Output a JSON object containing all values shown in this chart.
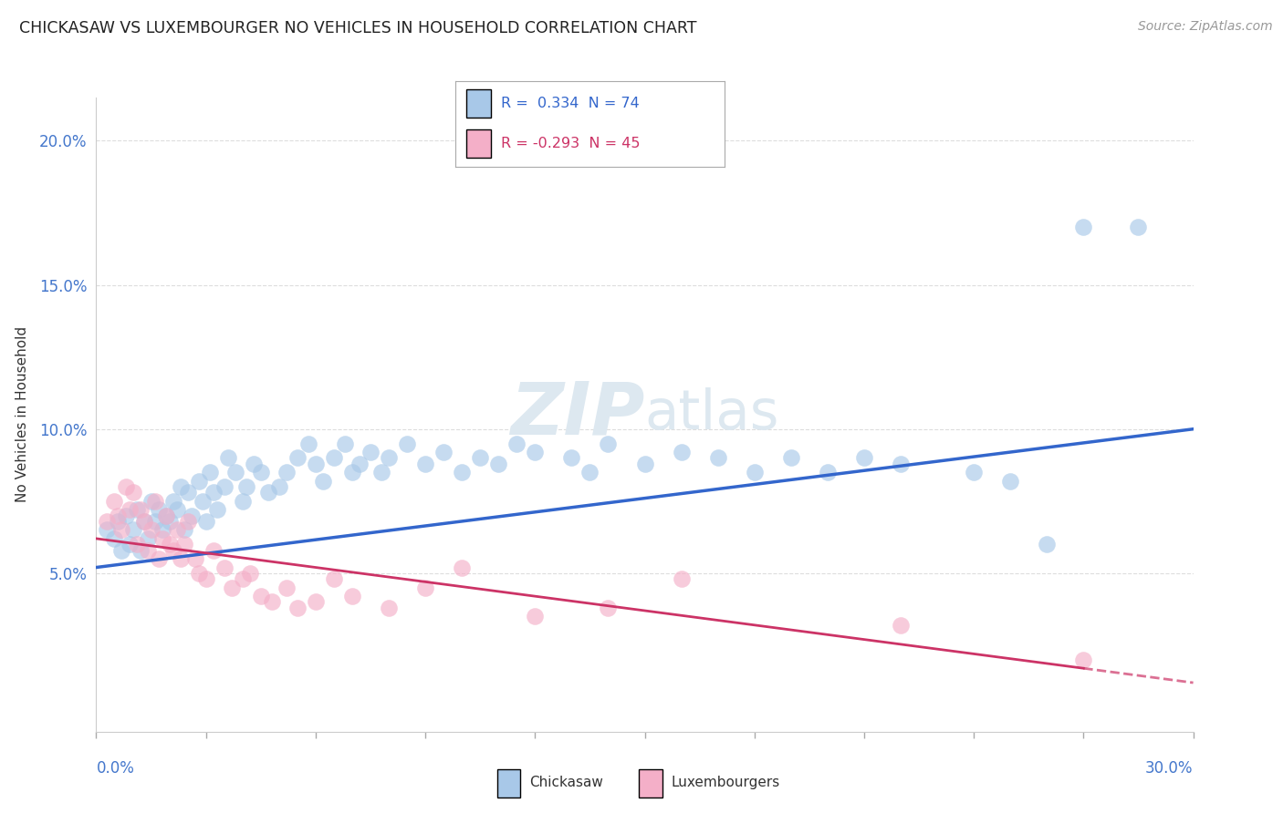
{
  "title": "CHICKASAW VS LUXEMBOURGER NO VEHICLES IN HOUSEHOLD CORRELATION CHART",
  "source": "Source: ZipAtlas.com",
  "ylabel": "No Vehicles in Household",
  "ytick_values": [
    0.05,
    0.1,
    0.15,
    0.2
  ],
  "xmin": 0.0,
  "xmax": 0.3,
  "ymin": -0.005,
  "ymax": 0.215,
  "legend_r1_val": "0.334",
  "legend_n1": "74",
  "legend_r2_val": "-0.293",
  "legend_n2": "45",
  "legend_label1": "Chickasaw",
  "legend_label2": "Luxembourgers",
  "color_blue": "#a8c8e8",
  "color_pink": "#f4afc8",
  "blue_line_color": "#3366cc",
  "pink_line_color": "#cc3366",
  "blue_line_start_y": 0.052,
  "blue_line_end_y": 0.1,
  "pink_line_start_y": 0.062,
  "pink_line_end_y": 0.012,
  "chickasaw_x": [
    0.003,
    0.005,
    0.006,
    0.007,
    0.008,
    0.009,
    0.01,
    0.011,
    0.012,
    0.013,
    0.014,
    0.015,
    0.016,
    0.017,
    0.018,
    0.019,
    0.02,
    0.021,
    0.022,
    0.023,
    0.024,
    0.025,
    0.026,
    0.028,
    0.029,
    0.03,
    0.031,
    0.032,
    0.033,
    0.035,
    0.036,
    0.038,
    0.04,
    0.041,
    0.043,
    0.045,
    0.047,
    0.05,
    0.052,
    0.055,
    0.058,
    0.06,
    0.062,
    0.065,
    0.068,
    0.07,
    0.072,
    0.075,
    0.078,
    0.08,
    0.085,
    0.09,
    0.095,
    0.1,
    0.105,
    0.11,
    0.115,
    0.12,
    0.13,
    0.135,
    0.14,
    0.15,
    0.16,
    0.17,
    0.18,
    0.19,
    0.2,
    0.21,
    0.22,
    0.24,
    0.25,
    0.26,
    0.27,
    0.285
  ],
  "chickasaw_y": [
    0.065,
    0.062,
    0.068,
    0.058,
    0.07,
    0.06,
    0.065,
    0.072,
    0.058,
    0.068,
    0.062,
    0.075,
    0.068,
    0.072,
    0.065,
    0.07,
    0.068,
    0.075,
    0.072,
    0.08,
    0.065,
    0.078,
    0.07,
    0.082,
    0.075,
    0.068,
    0.085,
    0.078,
    0.072,
    0.08,
    0.09,
    0.085,
    0.075,
    0.08,
    0.088,
    0.085,
    0.078,
    0.08,
    0.085,
    0.09,
    0.095,
    0.088,
    0.082,
    0.09,
    0.095,
    0.085,
    0.088,
    0.092,
    0.085,
    0.09,
    0.095,
    0.088,
    0.092,
    0.085,
    0.09,
    0.088,
    0.095,
    0.092,
    0.09,
    0.085,
    0.095,
    0.088,
    0.092,
    0.09,
    0.085,
    0.09,
    0.085,
    0.09,
    0.088,
    0.085,
    0.082,
    0.06,
    0.17,
    0.17
  ],
  "luxembourger_x": [
    0.003,
    0.005,
    0.006,
    0.007,
    0.008,
    0.009,
    0.01,
    0.011,
    0.012,
    0.013,
    0.014,
    0.015,
    0.016,
    0.017,
    0.018,
    0.019,
    0.02,
    0.021,
    0.022,
    0.023,
    0.024,
    0.025,
    0.027,
    0.028,
    0.03,
    0.032,
    0.035,
    0.037,
    0.04,
    0.042,
    0.045,
    0.048,
    0.052,
    0.055,
    0.06,
    0.065,
    0.07,
    0.08,
    0.09,
    0.1,
    0.12,
    0.14,
    0.16,
    0.22,
    0.27
  ],
  "luxembourger_y": [
    0.068,
    0.075,
    0.07,
    0.065,
    0.08,
    0.072,
    0.078,
    0.06,
    0.072,
    0.068,
    0.058,
    0.065,
    0.075,
    0.055,
    0.062,
    0.07,
    0.06,
    0.058,
    0.065,
    0.055,
    0.06,
    0.068,
    0.055,
    0.05,
    0.048,
    0.058,
    0.052,
    0.045,
    0.048,
    0.05,
    0.042,
    0.04,
    0.045,
    0.038,
    0.04,
    0.048,
    0.042,
    0.038,
    0.045,
    0.052,
    0.035,
    0.038,
    0.048,
    0.032,
    0.02
  ]
}
